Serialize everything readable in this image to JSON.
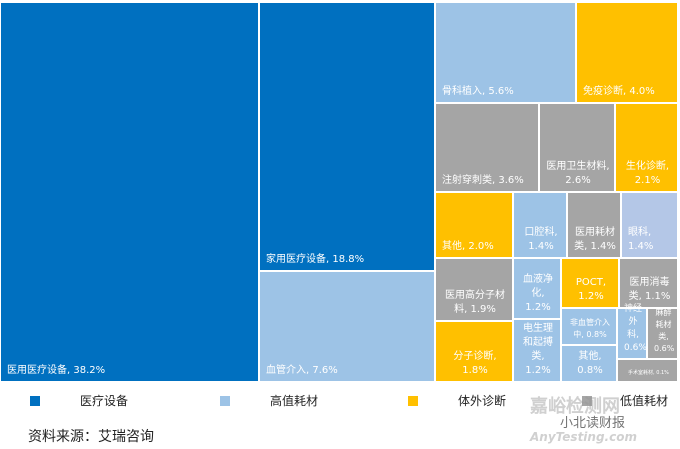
{
  "chart_data": {
    "type": "treemap",
    "title": "",
    "colors": {
      "医疗设备": "#0070C0",
      "高值耗材": "#9DC3E6",
      "体外诊断": "#FFC000",
      "低值耗材": "#A5A5A5",
      "眼科": "#B4C7E7"
    },
    "legend": {
      "placement": "bottom",
      "entries": [
        "医疗设备",
        "高值耗材",
        "体外诊断",
        "低值耗材"
      ]
    },
    "items": [
      {
        "label": "医用医疗设备, 38.2%",
        "name": "医用医疗设备",
        "value": 38.2,
        "group": "医疗设备"
      },
      {
        "label": "家用医疗设备, 18.8%",
        "name": "家用医疗设备",
        "value": 18.8,
        "group": "医疗设备"
      },
      {
        "label": "血管介入, 7.6%",
        "name": "血管介入",
        "value": 7.6,
        "group": "高值耗材"
      },
      {
        "label": "骨科植入, 5.6%",
        "name": "骨科植入",
        "value": 5.6,
        "group": "高值耗材"
      },
      {
        "label": "免疫诊断, 4.0%",
        "name": "免疫诊断",
        "value": 4.0,
        "group": "体外诊断"
      },
      {
        "label": "注射穿刺类, 3.6%",
        "name": "注射穿刺类",
        "value": 3.6,
        "group": "低值耗材"
      },
      {
        "label": "医用卫生材料, 2.6%",
        "name": "医用卫生材料",
        "value": 2.6,
        "group": "低值耗材"
      },
      {
        "label": "生化诊断, 2.1%",
        "name": "生化诊断",
        "value": 2.1,
        "group": "体外诊断"
      },
      {
        "label": "其他, 2.0%",
        "name": "其他",
        "value": 2.0,
        "group": "体外诊断"
      },
      {
        "label": "口腔科, 1.4%",
        "name": "口腔科",
        "value": 1.4,
        "group": "高值耗材"
      },
      {
        "label": "医用耗材类, 1.4%",
        "name": "医用耗材类",
        "value": 1.4,
        "group": "低值耗材"
      },
      {
        "label": "眼科, 1.4%",
        "name": "眼科",
        "value": 1.4,
        "group": "高值耗材"
      },
      {
        "label": "医用高分子材料, 1.9%",
        "name": "医用高分子材料",
        "value": 1.9,
        "group": "低值耗材"
      },
      {
        "label": "分子诊断, 1.8%",
        "name": "分子诊断",
        "value": 1.8,
        "group": "体外诊断"
      },
      {
        "label": "血液净化, 1.2%",
        "name": "血液净化",
        "value": 1.2,
        "group": "高值耗材"
      },
      {
        "label": "电生理和起搏类, 1.2%",
        "name": "电生理和起搏类",
        "value": 1.2,
        "group": "高值耗材"
      },
      {
        "label": "POCT, 1.2%",
        "name": "POCT",
        "value": 1.2,
        "group": "体外诊断"
      },
      {
        "label": "医用消毒类, 1.1%",
        "name": "医用消毒类",
        "value": 1.1,
        "group": "低值耗材"
      },
      {
        "label": "非血管介入中, 0.8%",
        "name": "非血管介入中",
        "value": 0.8,
        "group": "高值耗材"
      },
      {
        "label": "其他, 0.8%",
        "name": "其他",
        "value": 0.8,
        "group": "高值耗材"
      },
      {
        "label": "神经外科, 0.6%",
        "name": "神经外科",
        "value": 0.6,
        "group": "高值耗材"
      },
      {
        "label": "麻醉耗材类, 0.6%",
        "name": "麻醉耗材类",
        "value": 0.6,
        "group": "低值耗材"
      },
      {
        "label": "手术室耗材, 0.1%",
        "name": "手术室耗材",
        "value": 0.1,
        "group": "低值耗材"
      }
    ]
  },
  "source": "资料来源：艾瑞咨询",
  "watermark": {
    "line1": "嘉峪检测网",
    "line2": "小北读财报",
    "line3": "AnyTesting.com"
  }
}
